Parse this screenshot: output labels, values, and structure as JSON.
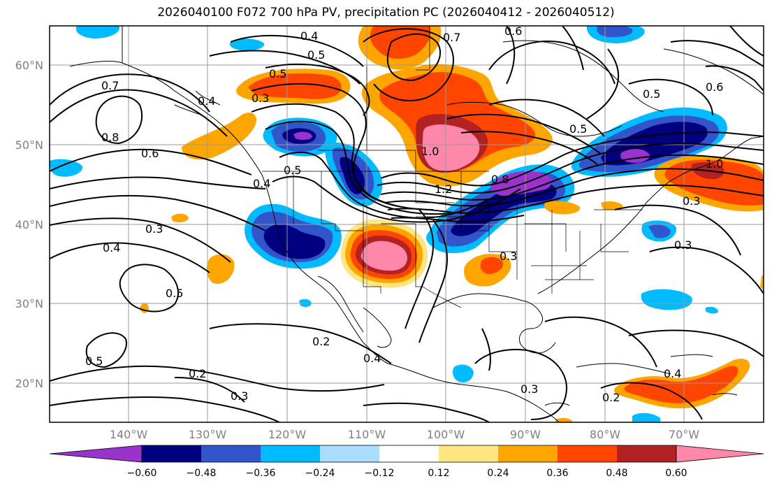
{
  "title": "2026040100 F072 700 hPa PV, precipitation PC (2026040412 - 2026040512)",
  "lat_labels": [
    "60°N",
    "50°N",
    "40°N",
    "30°N",
    "20°N"
  ],
  "lon_labels": [
    "140°W",
    "130°W",
    "120°W",
    "110°W",
    "100°W",
    "90°W",
    "80°W",
    "70°W"
  ],
  "colorbar": {
    "ticks": [
      "−0.60",
      "−0.48",
      "−0.36",
      "−0.24",
      "−0.12",
      "0.12",
      "0.24",
      "0.36",
      "0.48",
      "0.60"
    ],
    "colors": [
      "#9933cc",
      "#000080",
      "#3355cc",
      "#00bbff",
      "#aaddff",
      "#ffffff",
      "#ffe680",
      "#ffa500",
      "#ff4500",
      "#b22222",
      "#ff88aa"
    ]
  },
  "contour_labels": [
    "0.4",
    "0.5",
    "0.7",
    "0.6",
    "0.5",
    "0.3",
    "0.7",
    "0.8",
    "0.6",
    "0.4",
    "0.5",
    "0.4",
    "0.3",
    "0.4",
    "0.5",
    "0.2",
    "0.5",
    "0.2",
    "0.3",
    "0.4",
    "1.0",
    "1.2",
    "0.8",
    "0.5",
    "0.5",
    "0.6",
    "1.0",
    "0.3",
    "0.3",
    "0.3",
    "0.4",
    "0.2",
    "0.3"
  ]
}
